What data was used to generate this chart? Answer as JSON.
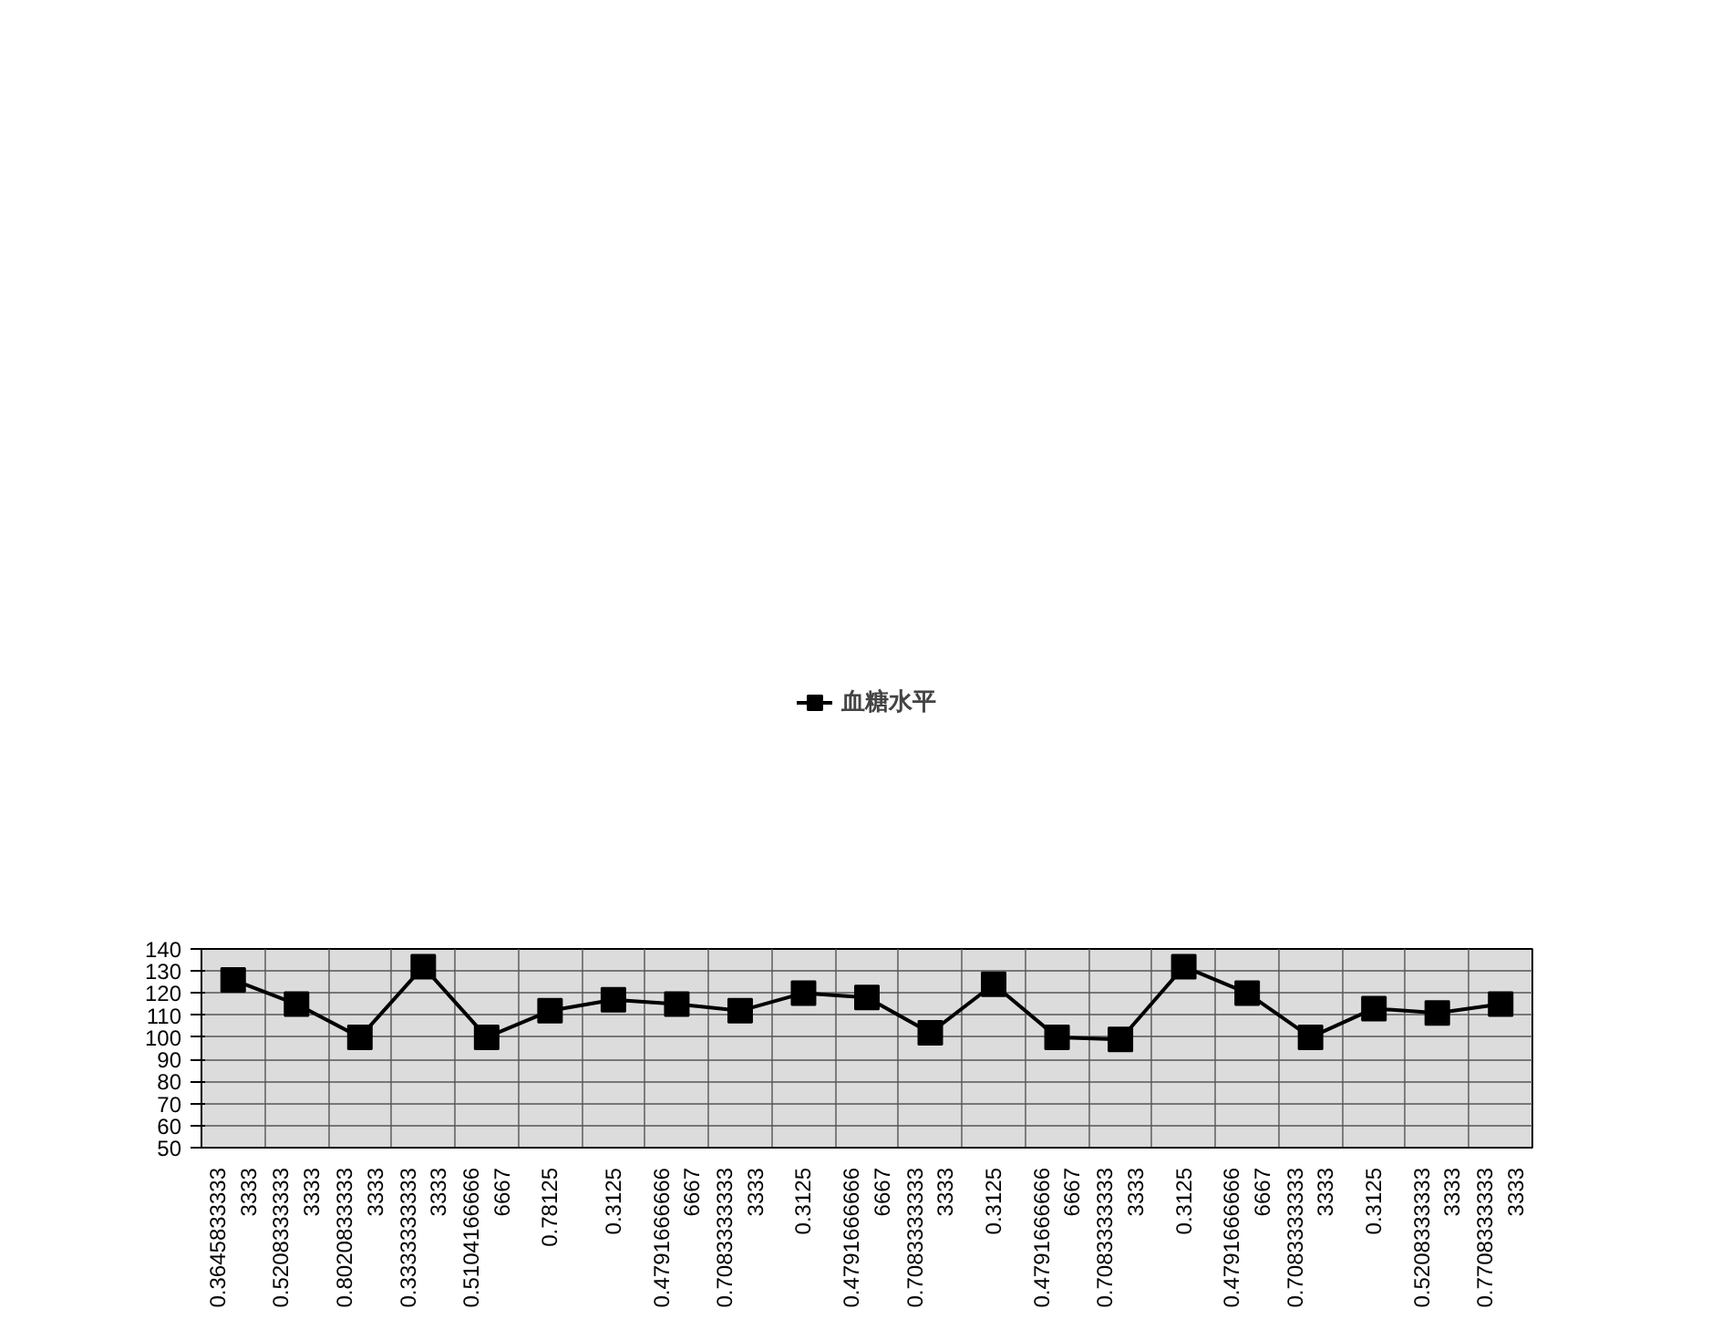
{
  "chart_data": {
    "type": "line",
    "categories": [
      "0.36458333333333",
      "0.52083333333333",
      "0.80208333333333",
      "0.33333333333333",
      "0.51041666666667",
      "0.78125",
      "0.3125",
      "0.47916666666667",
      "0.70833333333333",
      "0.3125",
      "0.47916666666667",
      "0.70833333333333",
      "0.3125",
      "0.47916666666667",
      "0.70833333333333",
      "0.3125",
      "0.47916666666667",
      "0.70833333333333",
      "0.3125",
      "0.52083333333333",
      "0.77083333333333"
    ],
    "series": [
      {
        "name": "血糖水平",
        "color": "#000000",
        "values": [
          126,
          115,
          100,
          132,
          100,
          112,
          117,
          115,
          112,
          120,
          118,
          102,
          124,
          100,
          99,
          132,
          120,
          100,
          113,
          111,
          115
        ]
      }
    ],
    "ylim": [
      50,
      140
    ],
    "yticks": [
      50,
      60,
      70,
      80,
      90,
      100,
      110,
      120,
      130,
      140
    ],
    "grid": true,
    "legend": "top",
    "marker": "square",
    "line_style": "solid"
  }
}
